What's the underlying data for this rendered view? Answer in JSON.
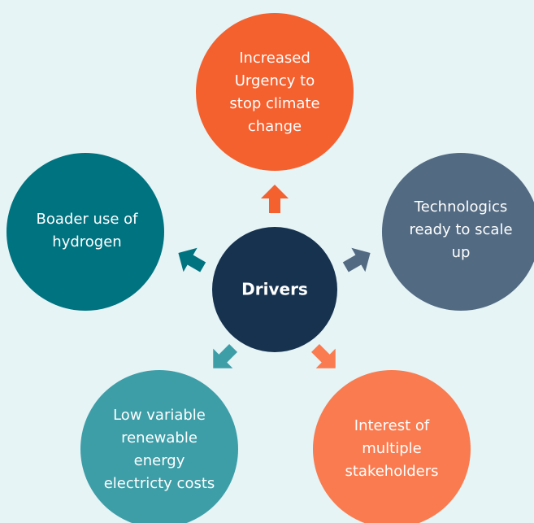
{
  "center": {
    "label": "Drivers",
    "color": "#16324f"
  },
  "nodes": [
    {
      "lines": [
        "Increased",
        "Urgency to",
        "stop climate",
        "change"
      ],
      "color": "#f4602e"
    },
    {
      "lines": [
        "Technologics",
        "ready to scale",
        "up"
      ],
      "color": "#526a82"
    },
    {
      "lines": [
        "Interest of",
        "multiple",
        "stakeholders"
      ],
      "color": "#f97b4f"
    },
    {
      "lines": [
        "Low variable",
        "renewable",
        "energy",
        "electricty costs"
      ],
      "color": "#3d9ea8"
    },
    {
      "lines": [
        "Boader use of",
        "hydrogen"
      ],
      "color": "#007380"
    }
  ]
}
